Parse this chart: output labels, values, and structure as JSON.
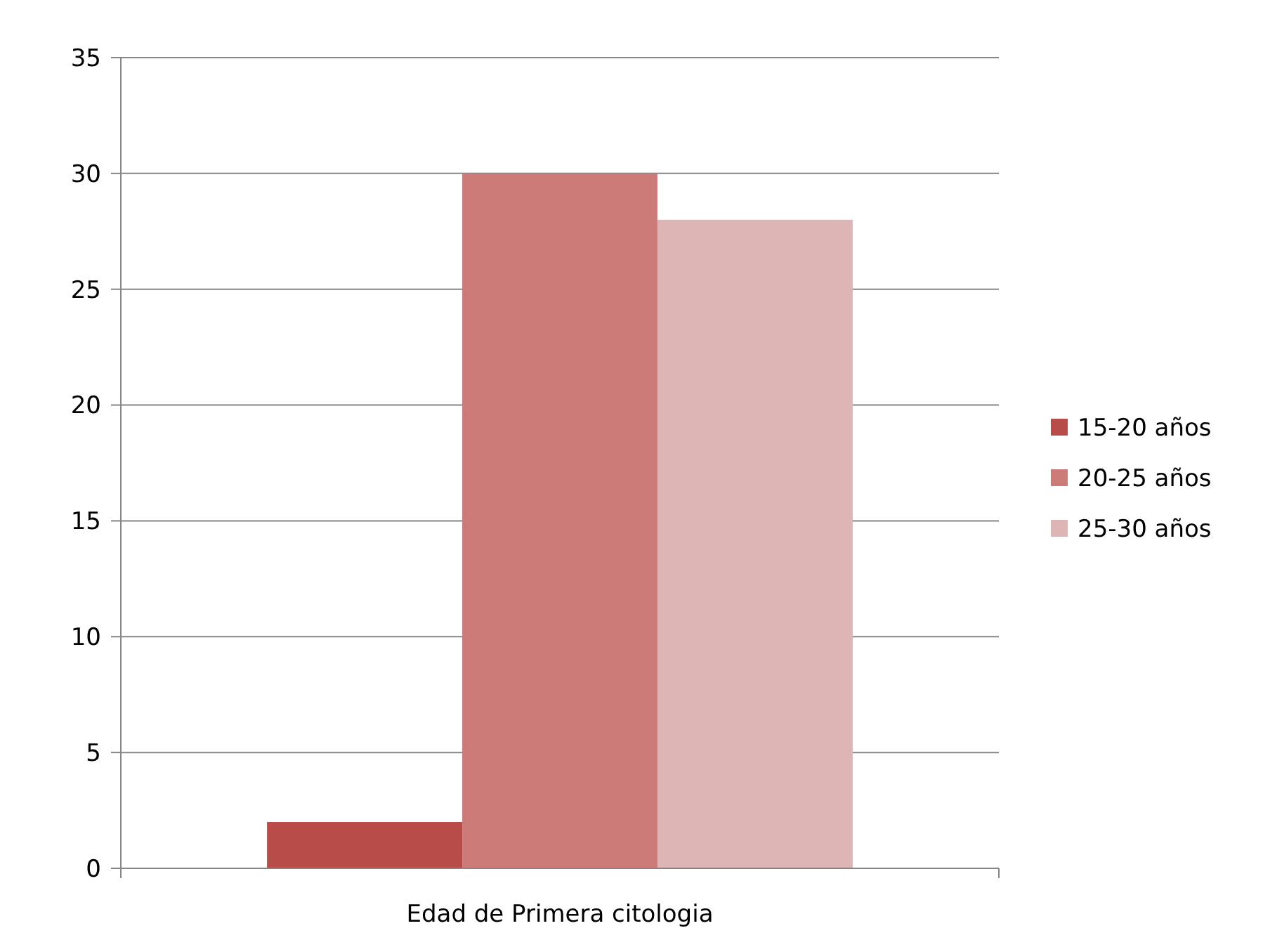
{
  "chart_data": {
    "type": "bar",
    "categories": [
      "Edad de Primera citologia"
    ],
    "series": [
      {
        "name": "15-20 años",
        "color": "#b84c48",
        "values": [
          2
        ]
      },
      {
        "name": "20-25 años",
        "color": "#cc7b79",
        "values": [
          30
        ]
      },
      {
        "name": "25-30 años",
        "color": "#ddb5b5",
        "values": [
          28
        ]
      }
    ],
    "ylim": [
      0,
      35
    ],
    "yticks": [
      0,
      5,
      10,
      15,
      20,
      25,
      30,
      35
    ],
    "grid": "y",
    "legend": "right"
  }
}
